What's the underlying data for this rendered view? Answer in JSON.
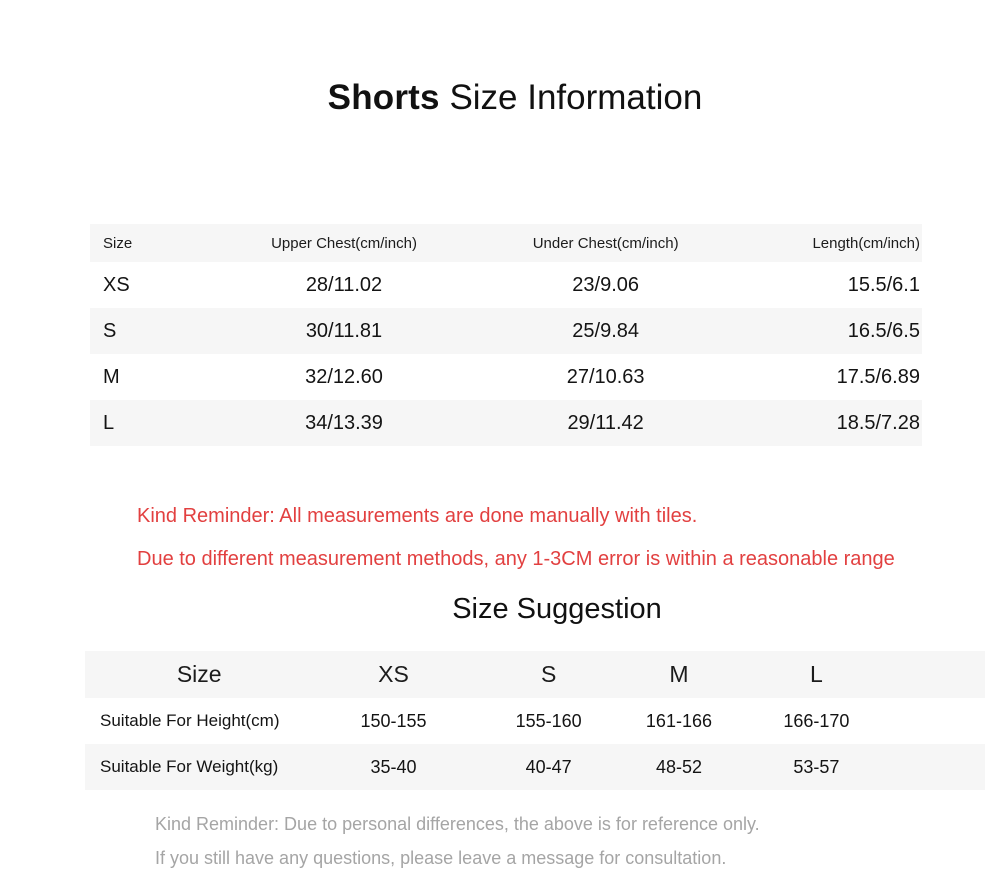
{
  "page": {
    "title_primary": "Shorts",
    "title_secondary": "Size Information"
  },
  "size_table": {
    "headers": [
      "Size",
      "Upper Chest(cm/inch)",
      "Under Chest(cm/inch)",
      "Length(cm/inch)"
    ],
    "rows": [
      [
        "XS",
        "28/11.02",
        "23/9.06",
        "15.5/6.1"
      ],
      [
        "S",
        "30/11.81",
        "25/9.84",
        "16.5/6.5"
      ],
      [
        "M",
        "32/12.60",
        "27/10.63",
        "17.5/6.89"
      ],
      [
        "L",
        "34/13.39",
        "29/11.42",
        "18.5/7.28"
      ]
    ]
  },
  "reminder": {
    "line1": "Kind Reminder: All measurements are done manually with tiles.",
    "line2": "Due to different measurement methods, any 1-3CM error is within a reasonable range"
  },
  "suggestion": {
    "title": "Size Suggestion",
    "headers": [
      "Size",
      "XS",
      "S",
      "M",
      "L"
    ],
    "rows": [
      [
        "Suitable For Height(cm)",
        "150-155",
        "155-160",
        "161-166",
        "166-170"
      ],
      [
        "Suitable For Weight(kg)",
        "35-40",
        "40-47",
        "48-52",
        "53-57"
      ]
    ]
  },
  "footer": {
    "line1": "Kind Reminder: Due to personal differences, the above is for reference only.",
    "line2": "If you still have any questions, please leave a message for consultation."
  },
  "colors": {
    "row_stripe": "#f6f6f6",
    "reminder_red": "#e24040",
    "footer_gray": "#a5a5a5"
  }
}
